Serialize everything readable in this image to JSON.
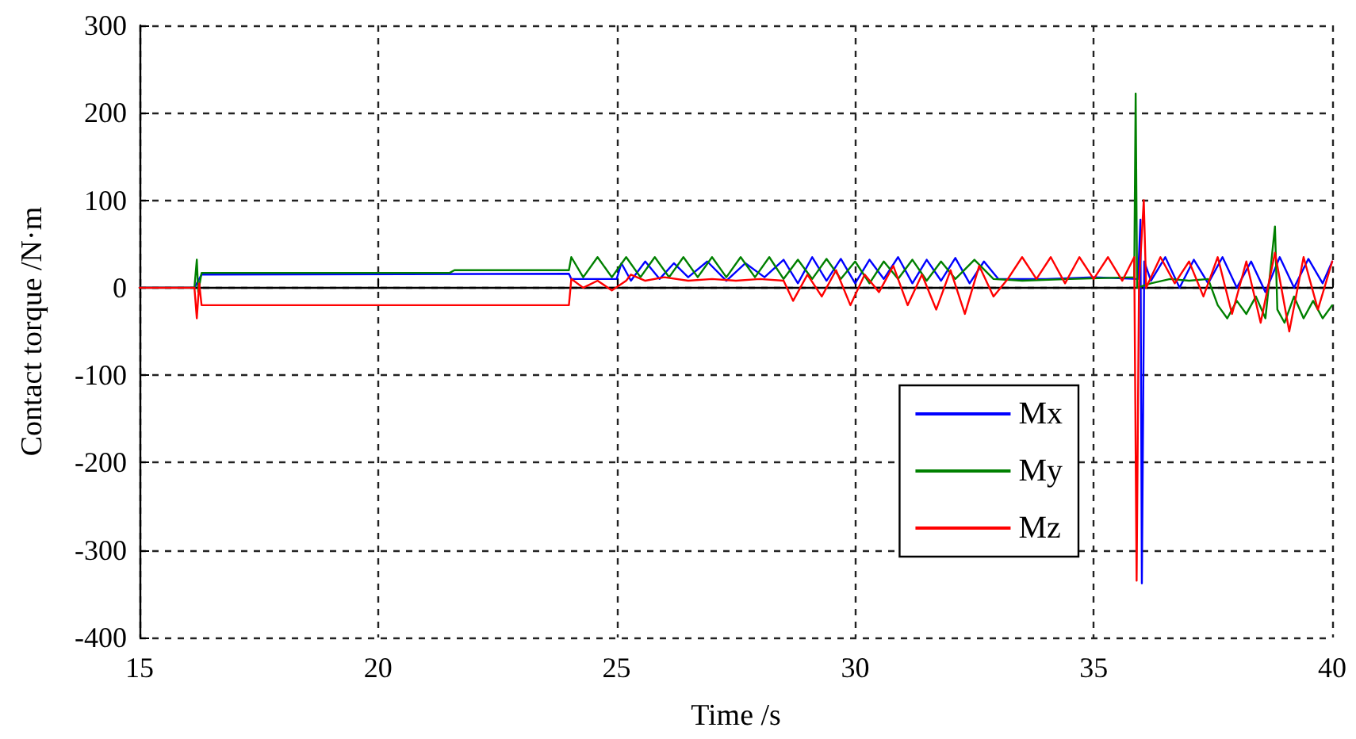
{
  "chart_data": {
    "type": "line",
    "xlabel": "Time /s",
    "ylabel": "Contact torque /N·m",
    "xlim": [
      15,
      40
    ],
    "xticks": [
      15,
      20,
      25,
      30,
      35,
      40
    ],
    "ylim": [
      -400,
      300
    ],
    "yticks": [
      -400,
      -300,
      -200,
      -100,
      0,
      100,
      200,
      300
    ],
    "grid": true,
    "legend": "right",
    "marker": "none",
    "line_style": "solid",
    "series": [
      {
        "name": "Mx",
        "color": "#0000ff",
        "x": [
          15,
          16.15,
          16.3,
          24,
          24.05,
          25,
          25.1,
          25.3,
          25.6,
          25.9,
          26.2,
          26.5,
          26.9,
          27.3,
          27.7,
          28.1,
          28.5,
          28.8,
          29.1,
          29.4,
          29.7,
          30,
          30.3,
          30.6,
          30.9,
          31.2,
          31.5,
          31.8,
          32.1,
          32.4,
          32.7,
          33,
          34,
          35,
          35.93,
          35.98,
          36.01,
          36.06,
          36.2,
          36.5,
          36.8,
          37.1,
          37.4,
          37.7,
          38,
          38.3,
          38.6,
          38.9,
          39.2,
          39.5,
          39.8,
          40
        ],
        "values": [
          0,
          0,
          15,
          16,
          10,
          10,
          28,
          8,
          30,
          10,
          28,
          12,
          30,
          8,
          28,
          12,
          32,
          5,
          35,
          8,
          33,
          5,
          32,
          10,
          35,
          5,
          32,
          8,
          34,
          5,
          30,
          10,
          10,
          12,
          10,
          78,
          -338,
          30,
          8,
          35,
          0,
          32,
          5,
          35,
          0,
          30,
          -5,
          35,
          0,
          33,
          5,
          30
        ]
      },
      {
        "name": "My",
        "color": "#008000",
        "x": [
          15,
          16.15,
          16.2,
          16.23,
          16.3,
          21.5,
          21.6,
          24,
          24.05,
          24.3,
          24.6,
          24.9,
          25.2,
          25.5,
          25.8,
          26.1,
          26.4,
          26.7,
          27,
          27.3,
          27.6,
          27.9,
          28.2,
          28.5,
          28.8,
          29.1,
          29.4,
          29.7,
          30,
          30.3,
          30.6,
          30.9,
          31.2,
          31.5,
          31.8,
          32.1,
          32.5,
          32.9,
          33.5,
          34.5,
          35.85,
          35.88,
          35.91,
          36.2,
          36.6,
          37,
          37.4,
          37.6,
          37.8,
          38,
          38.2,
          38.4,
          38.6,
          38.8,
          38.85,
          39,
          39.2,
          39.4,
          39.6,
          39.8,
          40
        ],
        "values": [
          0,
          0,
          32,
          -5,
          17,
          17,
          20,
          20,
          35,
          12,
          35,
          12,
          35,
          12,
          35,
          12,
          35,
          12,
          35,
          12,
          35,
          12,
          35,
          10,
          32,
          10,
          33,
          10,
          30,
          5,
          30,
          10,
          32,
          8,
          30,
          10,
          32,
          10,
          8,
          10,
          12,
          222,
          0,
          5,
          10,
          8,
          10,
          -20,
          -35,
          -15,
          -30,
          -10,
          -35,
          70,
          -25,
          -40,
          -10,
          -35,
          -15,
          -35,
          -20
        ]
      },
      {
        "name": "Mz",
        "color": "#ff0000",
        "x": [
          15,
          16.15,
          16.2,
          16.25,
          16.3,
          24,
          24.05,
          24.3,
          24.6,
          24.9,
          25.2,
          25.3,
          25.6,
          26,
          26.5,
          27,
          27.5,
          28,
          28.5,
          28.7,
          29,
          29.3,
          29.6,
          29.9,
          30.2,
          30.5,
          30.8,
          31.1,
          31.4,
          31.7,
          32,
          32.3,
          32.6,
          32.9,
          33.2,
          33.5,
          33.8,
          34.1,
          34.4,
          34.7,
          35,
          35.3,
          35.6,
          35.85,
          35.9,
          35.95,
          36.05,
          36.1,
          36.4,
          36.7,
          37,
          37.3,
          37.6,
          37.9,
          38.2,
          38.5,
          38.8,
          39.1,
          39.4,
          39.7,
          40
        ],
        "values": [
          0,
          0,
          -35,
          5,
          -20,
          -20,
          10,
          0,
          8,
          -3,
          8,
          15,
          8,
          12,
          8,
          10,
          8,
          10,
          8,
          -15,
          15,
          -10,
          20,
          -20,
          15,
          -5,
          25,
          -20,
          15,
          -25,
          20,
          -30,
          25,
          -10,
          10,
          35,
          10,
          35,
          5,
          35,
          10,
          35,
          8,
          35,
          -335,
          5,
          100,
          0,
          35,
          5,
          30,
          -10,
          35,
          -30,
          30,
          -40,
          40,
          -50,
          35,
          -25,
          30
        ]
      }
    ]
  }
}
